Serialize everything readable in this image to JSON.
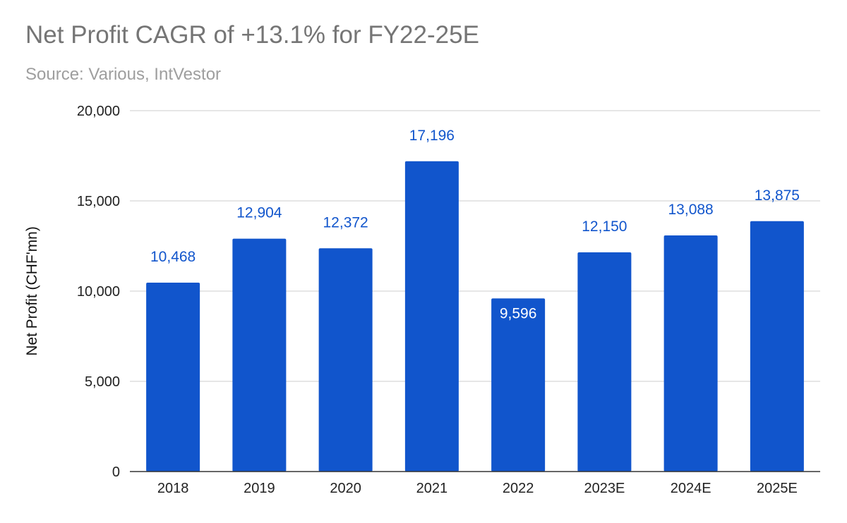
{
  "chart_data": {
    "type": "bar",
    "title": "Net Profit CAGR of +13.1% for FY22-25E",
    "subtitle": "Source: Various, IntVestor",
    "xlabel": "",
    "ylabel": "Net Profit (CHF'mn)",
    "categories": [
      "2018",
      "2019",
      "2020",
      "2021",
      "2022",
      "2023E",
      "2024E",
      "2025E"
    ],
    "values": [
      10468,
      12904,
      12372,
      17196,
      9596,
      12150,
      13088,
      13875
    ],
    "data_labels": [
      "10,468",
      "12,904",
      "12,372",
      "17,196",
      "9,596",
      "12,150",
      "13,088",
      "13,875"
    ],
    "data_label_inside": [
      false,
      false,
      false,
      false,
      true,
      false,
      false,
      false
    ],
    "ylim": [
      0,
      20000
    ],
    "yticks": [
      0,
      5000,
      10000,
      15000,
      20000
    ],
    "ytick_labels": [
      "0",
      "5,000",
      "10,000",
      "15,000",
      "20,000"
    ],
    "grid": true,
    "legend": "none",
    "colors": {
      "bar": "#1155cc",
      "label_outside": "#1155cc",
      "label_inside": "#ffffff",
      "grid": "#cccccc",
      "axis": "#333333"
    }
  }
}
